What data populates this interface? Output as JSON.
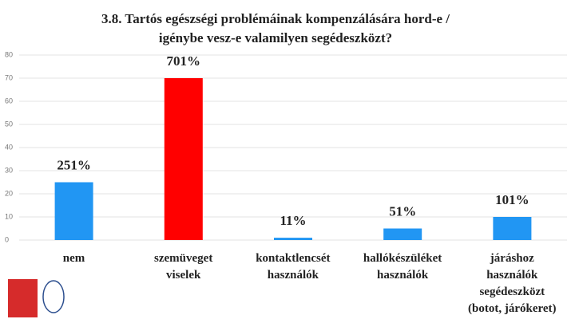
{
  "chart_data": {
    "type": "bar",
    "title": "3.8. Tartós egészségi problémáinak kompenzálására hord-e /\nigénybe vesz-e valamilyen segédeszközt?",
    "categories": [
      "nem",
      "szemüveget\nviselek",
      "kontaktlencsét\nhasználók",
      "hallókészüléket\nhasználók",
      "járáshoz\nhasználók\nsegédeszközt\n(botot, járókeret)"
    ],
    "values": [
      25,
      70,
      1,
      5,
      10
    ],
    "colors": [
      "#2196f3",
      "#ff0000",
      "#2196f3",
      "#2196f3",
      "#2196f3"
    ],
    "label_mark": "1",
    "label_unit": "%",
    "ylim": [
      0,
      80
    ],
    "yticks": [
      0,
      10,
      20,
      30,
      40,
      50,
      60,
      70,
      80
    ],
    "grid": true
  }
}
